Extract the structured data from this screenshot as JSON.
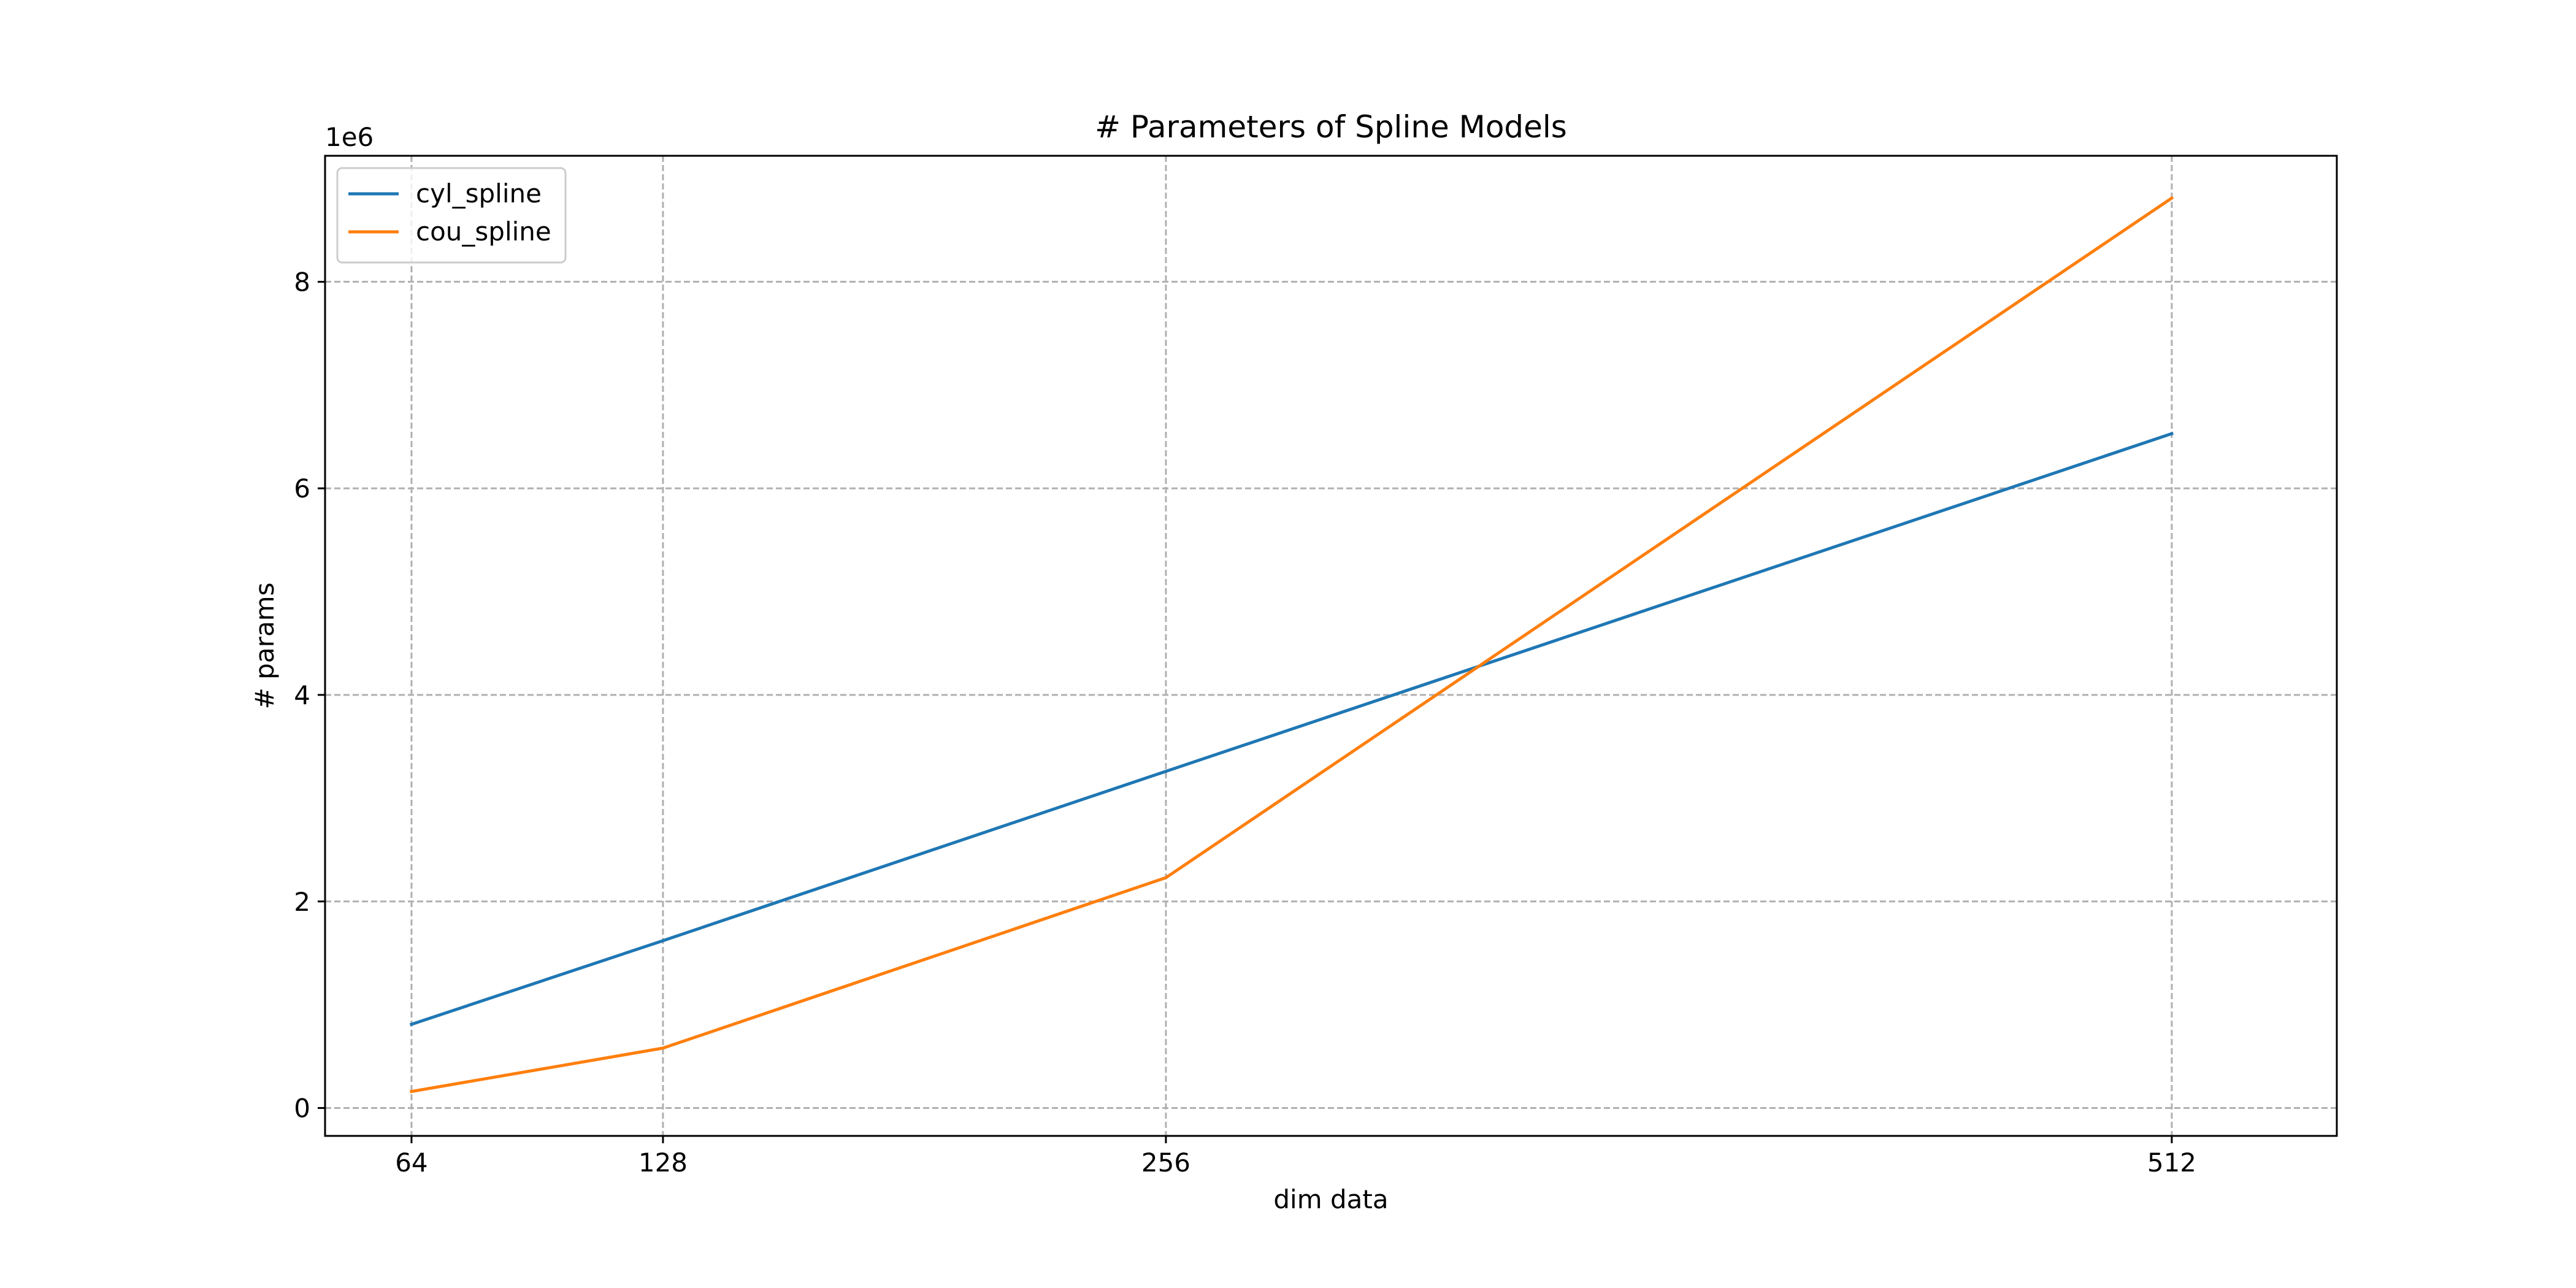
{
  "chart_data": {
    "type": "line",
    "title": "# Parameters of Spline Models",
    "xlabel": "dim data",
    "ylabel": "# params",
    "y_offset_text": "1e6",
    "y_scale_factor": 1000000,
    "x": [
      64,
      128,
      256,
      512
    ],
    "xticks": [
      64,
      128,
      256,
      512
    ],
    "xtick_labels": [
      "64",
      "128",
      "256",
      "512"
    ],
    "yticks": [
      0,
      2000000,
      4000000,
      6000000,
      8000000
    ],
    "ytick_labels": [
      "0",
      "2",
      "4",
      "6",
      "8"
    ],
    "xlim": [
      42,
      554
    ],
    "ylim": [
      -270000,
      9220000
    ],
    "grid": true,
    "legend_position": "upper left",
    "series": [
      {
        "name": "cyl_spline",
        "color": "#1f77b4",
        "values": [
          810000,
          1620000,
          3260000,
          6530000
        ]
      },
      {
        "name": "cou_spline",
        "color": "#ff7f0e",
        "values": [
          160000,
          580000,
          2230000,
          8810000
        ]
      }
    ]
  }
}
